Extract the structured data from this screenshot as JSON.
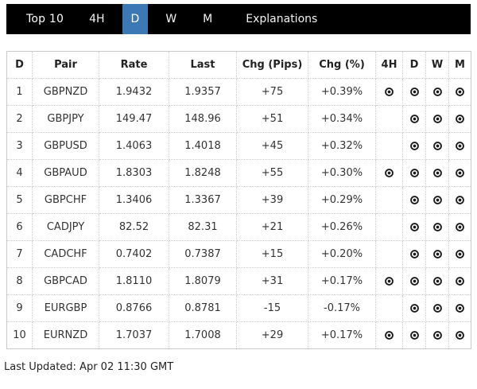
{
  "nav": {
    "brand": "Top 10",
    "tabs": [
      {
        "label": "4H",
        "active": false
      },
      {
        "label": "D",
        "active": true
      },
      {
        "label": "W",
        "active": false
      },
      {
        "label": "M",
        "active": false
      },
      {
        "label": "Explanations",
        "active": false
      }
    ]
  },
  "colors": {
    "nav_bg": "#000000",
    "active_tab": "#3c78b4",
    "table_text": "#333333",
    "border": "#cccccc",
    "icon": "#1b1b1b"
  },
  "table": {
    "columns": [
      "D",
      "Pair",
      "Rate",
      "Last",
      "Chg (Pips)",
      "Chg (%)",
      "4H",
      "D",
      "W",
      "M"
    ],
    "icon_name": "bullseye-icon",
    "rows": [
      {
        "rank": "1",
        "pair": "GBPNZD",
        "rate": "1.9432",
        "last": "1.9357",
        "chg_pips": "+75",
        "chg_pct": "+0.39%",
        "h4": true,
        "d": true,
        "w": true,
        "m": true
      },
      {
        "rank": "2",
        "pair": "GBPJPY",
        "rate": "149.47",
        "last": "148.96",
        "chg_pips": "+51",
        "chg_pct": "+0.34%",
        "h4": false,
        "d": true,
        "w": true,
        "m": true
      },
      {
        "rank": "3",
        "pair": "GBPUSD",
        "rate": "1.4063",
        "last": "1.4018",
        "chg_pips": "+45",
        "chg_pct": "+0.32%",
        "h4": false,
        "d": true,
        "w": true,
        "m": true
      },
      {
        "rank": "4",
        "pair": "GBPAUD",
        "rate": "1.8303",
        "last": "1.8248",
        "chg_pips": "+55",
        "chg_pct": "+0.30%",
        "h4": true,
        "d": true,
        "w": true,
        "m": true
      },
      {
        "rank": "5",
        "pair": "GBPCHF",
        "rate": "1.3406",
        "last": "1.3367",
        "chg_pips": "+39",
        "chg_pct": "+0.29%",
        "h4": false,
        "d": true,
        "w": true,
        "m": true
      },
      {
        "rank": "6",
        "pair": "CADJPY",
        "rate": "82.52",
        "last": "82.31",
        "chg_pips": "+21",
        "chg_pct": "+0.26%",
        "h4": false,
        "d": true,
        "w": true,
        "m": true
      },
      {
        "rank": "7",
        "pair": "CADCHF",
        "rate": "0.7402",
        "last": "0.7387",
        "chg_pips": "+15",
        "chg_pct": "+0.20%",
        "h4": false,
        "d": true,
        "w": true,
        "m": true
      },
      {
        "rank": "8",
        "pair": "GBPCAD",
        "rate": "1.8110",
        "last": "1.8079",
        "chg_pips": "+31",
        "chg_pct": "+0.17%",
        "h4": true,
        "d": true,
        "w": true,
        "m": true
      },
      {
        "rank": "9",
        "pair": "EURGBP",
        "rate": "0.8766",
        "last": "0.8781",
        "chg_pips": "-15",
        "chg_pct": "-0.17%",
        "h4": false,
        "d": true,
        "w": true,
        "m": true
      },
      {
        "rank": "10",
        "pair": "EURNZD",
        "rate": "1.7037",
        "last": "1.7008",
        "chg_pips": "+29",
        "chg_pct": "+0.17%",
        "h4": true,
        "d": true,
        "w": true,
        "m": true
      }
    ]
  },
  "footer": {
    "last_updated": "Last Updated: Apr 02 11:30 GMT"
  }
}
